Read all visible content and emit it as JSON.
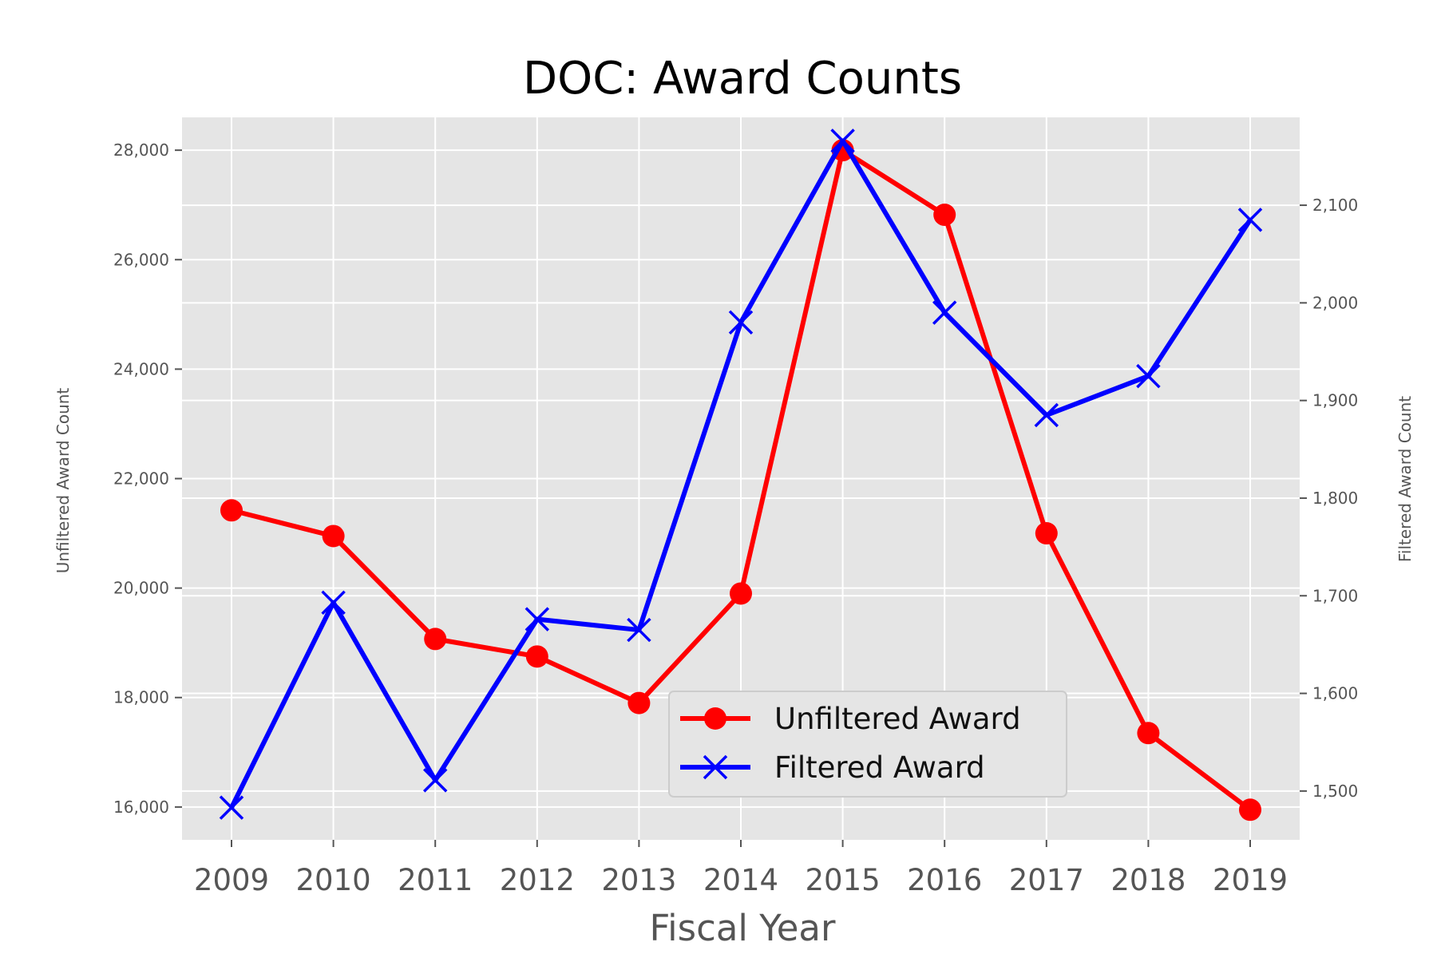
{
  "chart_data": {
    "type": "line",
    "title": "DOC: Award Counts",
    "xlabel": "Fiscal Year",
    "ylabel_left": "Unfiltered Award Count",
    "ylabel_right": "Filtered Award Count",
    "x": [
      2009,
      2010,
      2011,
      2012,
      2013,
      2014,
      2015,
      2016,
      2017,
      2018,
      2019
    ],
    "x_tick_labels": [
      "2009",
      "2010",
      "2011",
      "2012",
      "2013",
      "2014",
      "2015",
      "2016",
      "2017",
      "2018",
      "2019"
    ],
    "ylim_left": [
      15400,
      28600
    ],
    "ylim_right": [
      1450,
      2190
    ],
    "y_ticks_left": [
      16000,
      18000,
      20000,
      22000,
      24000,
      26000,
      28000
    ],
    "y_tick_labels_left": [
      "16,000",
      "18,000",
      "20,000",
      "22,000",
      "24,000",
      "26,000",
      "28,000"
    ],
    "y_ticks_right": [
      1500,
      1600,
      1700,
      1800,
      1900,
      2000,
      2100
    ],
    "y_tick_labels_right": [
      "1,500",
      "1,600",
      "1,700",
      "1,800",
      "1,900",
      "2,000",
      "2,100"
    ],
    "grid": true,
    "legend_position": "lower-center",
    "series": [
      {
        "name": "Unfiltered Award",
        "axis": "left",
        "color": "#ff0000",
        "marker": "circle",
        "values": [
          21420,
          20950,
          19070,
          18750,
          17900,
          19900,
          28000,
          26820,
          21000,
          17350,
          15950
        ]
      },
      {
        "name": "Filtered Award",
        "axis": "right",
        "color": "#0000ff",
        "marker": "x",
        "values": [
          1483,
          1693,
          1511,
          1676,
          1665,
          1980,
          2166,
          1990,
          1885,
          1925,
          2085
        ]
      }
    ]
  },
  "colors": {
    "plot_background": "#e5e5e5",
    "grid": "#ffffff"
  }
}
